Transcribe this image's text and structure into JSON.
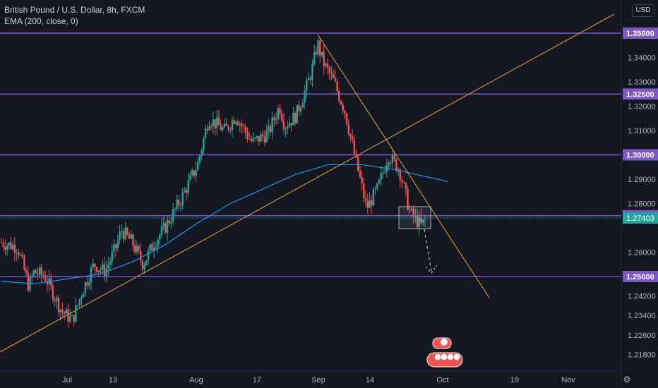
{
  "legend": {
    "symbol": "British Pound / U.S. Dollar, 8h, FXCM",
    "indicator": "EMA (200, close, 0)"
  },
  "currency_button": "USD",
  "colors": {
    "background": "#131722",
    "up": "#26a69a",
    "down": "#ef5350",
    "level": "#7e57c2",
    "trendline": "#f0a535",
    "ema": "#2196f3",
    "axis_text": "#b2b5be",
    "last_price": "#26a69a"
  },
  "chart_data": {
    "type": "candlestick",
    "y_ticks": [
      "1.34000",
      "1.33000",
      "1.32000",
      "1.31000",
      "1.29000",
      "1.28000",
      "1.26000",
      "1.24200",
      "1.23400",
      "1.22600",
      "1.21800"
    ],
    "x_ticks": [
      "Jul",
      "13",
      "Aug",
      "17",
      "Sep",
      "14",
      "Oct",
      "19",
      "Nov"
    ],
    "levels": [
      1.35,
      1.325,
      1.3,
      1.275,
      1.25
    ],
    "level_labels": [
      "1.35000",
      "1.32500",
      "1.30000",
      "1.27500",
      "1.25000"
    ],
    "last_price": 1.27403,
    "last_price_label": "1.27403",
    "trend_series": [
      {
        "t": 0,
        "v": 1.264
      },
      {
        "t": 3,
        "v": 1.262
      },
      {
        "t": 5,
        "v": 1.246
      },
      {
        "t": 6,
        "v": 1.252
      },
      {
        "t": 8,
        "v": 1.25
      },
      {
        "t": 11,
        "v": 1.236
      },
      {
        "t": 13,
        "v": 1.232
      },
      {
        "t": 15,
        "v": 1.245
      },
      {
        "t": 17,
        "v": 1.255
      },
      {
        "t": 19,
        "v": 1.252
      },
      {
        "t": 21,
        "v": 1.262
      },
      {
        "t": 22,
        "v": 1.269
      },
      {
        "t": 24,
        "v": 1.264
      },
      {
        "t": 26,
        "v": 1.255
      },
      {
        "t": 28,
        "v": 1.264
      },
      {
        "t": 30,
        "v": 1.27
      },
      {
        "t": 33,
        "v": 1.282
      },
      {
        "t": 36,
        "v": 1.296
      },
      {
        "t": 38,
        "v": 1.315
      },
      {
        "t": 41,
        "v": 1.31
      },
      {
        "t": 43,
        "v": 1.316
      },
      {
        "t": 46,
        "v": 1.305
      },
      {
        "t": 49,
        "v": 1.309
      },
      {
        "t": 51,
        "v": 1.32
      },
      {
        "t": 52,
        "v": 1.312
      },
      {
        "t": 54,
        "v": 1.316
      },
      {
        "t": 56,
        "v": 1.328
      },
      {
        "t": 57,
        "v": 1.335
      },
      {
        "t": 58,
        "v": 1.346
      },
      {
        "t": 59,
        "v": 1.338
      },
      {
        "t": 61,
        "v": 1.33
      },
      {
        "t": 63,
        "v": 1.318
      },
      {
        "t": 65,
        "v": 1.298
      },
      {
        "t": 67,
        "v": 1.278
      },
      {
        "t": 69,
        "v": 1.286
      },
      {
        "t": 71,
        "v": 1.3
      },
      {
        "t": 73,
        "v": 1.294
      },
      {
        "t": 75,
        "v": 1.276
      },
      {
        "t": 77,
        "v": 1.271
      },
      {
        "t": 78,
        "v": 1.274
      }
    ],
    "ema_points": [
      {
        "t": 0,
        "v": 1.248
      },
      {
        "t": 6,
        "v": 1.247
      },
      {
        "t": 12,
        "v": 1.249
      },
      {
        "t": 18,
        "v": 1.251
      },
      {
        "t": 24,
        "v": 1.256
      },
      {
        "t": 30,
        "v": 1.263
      },
      {
        "t": 36,
        "v": 1.272
      },
      {
        "t": 42,
        "v": 1.28
      },
      {
        "t": 48,
        "v": 1.286
      },
      {
        "t": 54,
        "v": 1.292
      },
      {
        "t": 60,
        "v": 1.296
      },
      {
        "t": 66,
        "v": 1.296
      },
      {
        "t": 72,
        "v": 1.294
      },
      {
        "t": 78,
        "v": 1.291
      },
      {
        "t": 82,
        "v": 1.289
      }
    ],
    "grid": false,
    "legend_position": "top-left"
  }
}
